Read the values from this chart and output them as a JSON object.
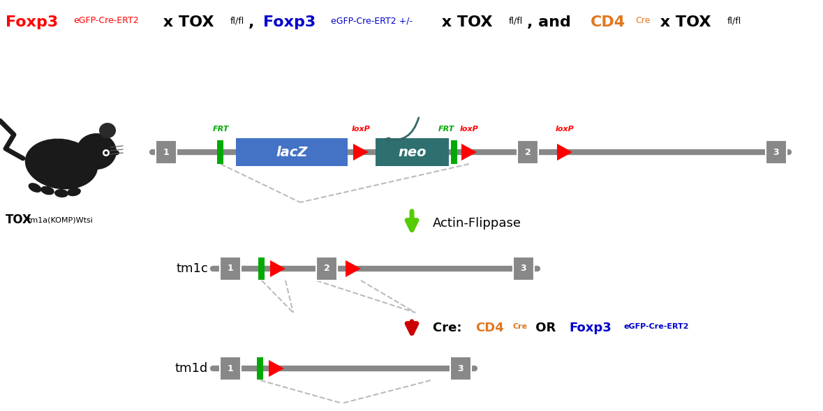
{
  "background_color": "#FFFFFF",
  "lacz_color": "#4472C4",
  "neo_color": "#2E7070",
  "frt_color": "#00AA00",
  "loxp_color": "#FF0000",
  "arrow_green": "#55CC00",
  "arrow_red": "#CC0000",
  "line_color": "#888888",
  "box_color": "#888888",
  "dashed_line_color": "#BBBBBB",
  "title_segments": [
    [
      "Foxp3",
      "#FF0000",
      16,
      true,
      false
    ],
    [
      "eGFP-Cre-ERT2",
      "#FF0000",
      9,
      false,
      true
    ],
    [
      " x TOX",
      "#000000",
      16,
      true,
      false
    ],
    [
      "fl/fl",
      "#000000",
      9,
      false,
      true
    ],
    [
      ", ",
      "#000000",
      16,
      true,
      false
    ],
    [
      "Foxp3",
      "#0000CC",
      16,
      true,
      false
    ],
    [
      "eGFP-Cre-ERT2 +/-",
      "#0000CC",
      9,
      false,
      true
    ],
    [
      " x TOX",
      "#000000",
      16,
      true,
      false
    ],
    [
      "fl/fl",
      "#000000",
      9,
      false,
      true
    ],
    [
      ", and ",
      "#000000",
      16,
      true,
      false
    ],
    [
      "CD4",
      "#E07820",
      16,
      true,
      false
    ],
    [
      "Cre",
      "#E07820",
      9,
      false,
      true
    ],
    [
      " x TOX",
      "#000000",
      16,
      true,
      false
    ],
    [
      "fl/fl",
      "#000000",
      9,
      false,
      true
    ]
  ],
  "cre_label_segments": [
    [
      "Cre: ",
      "#000000",
      13,
      true,
      false
    ],
    [
      "CD4",
      "#E07820",
      13,
      true,
      false
    ],
    [
      "Cre",
      "#E07820",
      8,
      true,
      true
    ],
    [
      " OR ",
      "#000000",
      13,
      true,
      false
    ],
    [
      "Foxp3",
      "#0000CC",
      13,
      true,
      false
    ],
    [
      "eGFP-Cre-ERT2",
      "#0000CC",
      8,
      true,
      true
    ]
  ]
}
